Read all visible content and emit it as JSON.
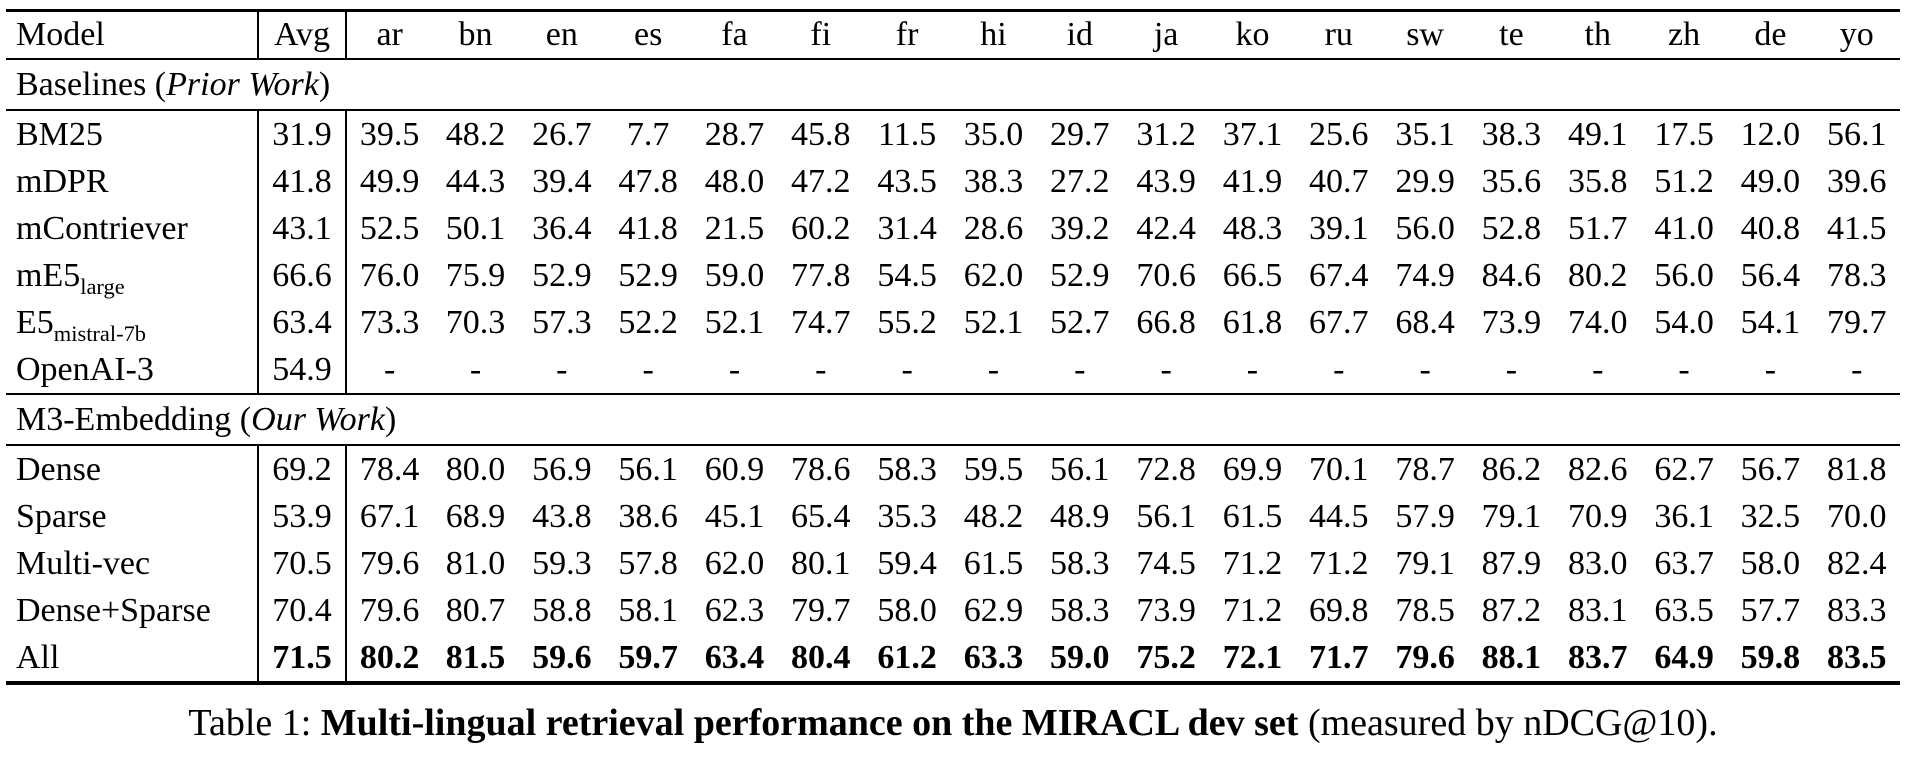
{
  "table": {
    "header": {
      "model": "Model",
      "avg": "Avg",
      "languages": [
        "ar",
        "bn",
        "en",
        "es",
        "fa",
        "fi",
        "fr",
        "hi",
        "id",
        "ja",
        "ko",
        "ru",
        "sw",
        "te",
        "th",
        "zh",
        "de",
        "yo"
      ]
    },
    "sections": [
      {
        "title_prefix": "Baselines (",
        "title_italic": "Prior Work",
        "title_suffix": ")",
        "rows": [
          {
            "model": "BM25",
            "avg": "31.9",
            "values": [
              "39.5",
              "48.2",
              "26.7",
              "7.7",
              "28.7",
              "45.8",
              "11.5",
              "35.0",
              "29.7",
              "31.2",
              "37.1",
              "25.6",
              "35.1",
              "38.3",
              "49.1",
              "17.5",
              "12.0",
              "56.1"
            ]
          },
          {
            "model": "mDPR",
            "avg": "41.8",
            "values": [
              "49.9",
              "44.3",
              "39.4",
              "47.8",
              "48.0",
              "47.2",
              "43.5",
              "38.3",
              "27.2",
              "43.9",
              "41.9",
              "40.7",
              "29.9",
              "35.6",
              "35.8",
              "51.2",
              "49.0",
              "39.6"
            ]
          },
          {
            "model": "mContriever",
            "avg": "43.1",
            "values": [
              "52.5",
              "50.1",
              "36.4",
              "41.8",
              "21.5",
              "60.2",
              "31.4",
              "28.6",
              "39.2",
              "42.4",
              "48.3",
              "39.1",
              "56.0",
              "52.8",
              "51.7",
              "41.0",
              "40.8",
              "41.5"
            ]
          },
          {
            "model": "mE5",
            "subscript": "large",
            "avg": "66.6",
            "values": [
              "76.0",
              "75.9",
              "52.9",
              "52.9",
              "59.0",
              "77.8",
              "54.5",
              "62.0",
              "52.9",
              "70.6",
              "66.5",
              "67.4",
              "74.9",
              "84.6",
              "80.2",
              "56.0",
              "56.4",
              "78.3"
            ]
          },
          {
            "model": "E5",
            "subscript": "mistral-7b",
            "avg": "63.4",
            "values": [
              "73.3",
              "70.3",
              "57.3",
              "52.2",
              "52.1",
              "74.7",
              "55.2",
              "52.1",
              "52.7",
              "66.8",
              "61.8",
              "67.7",
              "68.4",
              "73.9",
              "74.0",
              "54.0",
              "54.1",
              "79.7"
            ]
          },
          {
            "model": "OpenAI-3",
            "avg": "54.9",
            "values": [
              "-",
              "-",
              "-",
              "-",
              "-",
              "-",
              "-",
              "-",
              "-",
              "-",
              "-",
              "-",
              "-",
              "-",
              "-",
              "-",
              "-",
              "-"
            ]
          }
        ]
      },
      {
        "title_prefix": "M3-Embedding (",
        "title_italic": "Our Work",
        "title_suffix": ")",
        "rows": [
          {
            "model": "Dense",
            "avg": "69.2",
            "values": [
              "78.4",
              "80.0",
              "56.9",
              "56.1",
              "60.9",
              "78.6",
              "58.3",
              "59.5",
              "56.1",
              "72.8",
              "69.9",
              "70.1",
              "78.7",
              "86.2",
              "82.6",
              "62.7",
              "56.7",
              "81.8"
            ]
          },
          {
            "model": "Sparse",
            "avg": "53.9",
            "values": [
              "67.1",
              "68.9",
              "43.8",
              "38.6",
              "45.1",
              "65.4",
              "35.3",
              "48.2",
              "48.9",
              "56.1",
              "61.5",
              "44.5",
              "57.9",
              "79.1",
              "70.9",
              "36.1",
              "32.5",
              "70.0"
            ]
          },
          {
            "model": "Multi-vec",
            "avg": "70.5",
            "values": [
              "79.6",
              "81.0",
              "59.3",
              "57.8",
              "62.0",
              "80.1",
              "59.4",
              "61.5",
              "58.3",
              "74.5",
              "71.2",
              "71.2",
              "79.1",
              "87.9",
              "83.0",
              "63.7",
              "58.0",
              "82.4"
            ]
          },
          {
            "model": "Dense+Sparse",
            "avg": "70.4",
            "values": [
              "79.6",
              "80.7",
              "58.8",
              "58.1",
              "62.3",
              "79.7",
              "58.0",
              "62.9",
              "58.3",
              "73.9",
              "71.2",
              "69.8",
              "78.5",
              "87.2",
              "83.1",
              "63.5",
              "57.7",
              "83.3"
            ]
          },
          {
            "model": "All",
            "bold": true,
            "avg": "71.5",
            "values": [
              "80.2",
              "81.5",
              "59.6",
              "59.7",
              "63.4",
              "80.4",
              "61.2",
              "63.3",
              "59.0",
              "75.2",
              "72.1",
              "71.7",
              "79.6",
              "88.1",
              "83.7",
              "64.9",
              "59.8",
              "83.5"
            ]
          }
        ]
      }
    ]
  },
  "caption": {
    "prefix": "Table 1: ",
    "bold": "Multi-lingual retrieval performance on the MIRACL dev set",
    "suffix": " (measured by nDCG@10)."
  },
  "colors": {
    "text": "#000000",
    "background": "#ffffff",
    "rule": "#000000"
  }
}
